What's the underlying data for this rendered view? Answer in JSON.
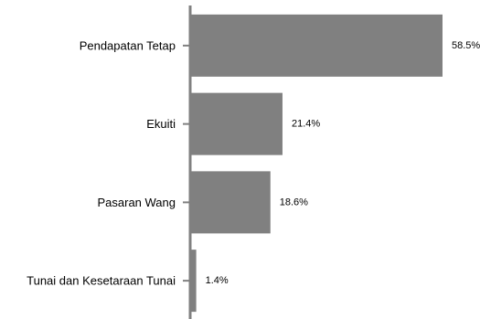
{
  "chart_data": {
    "type": "bar",
    "orientation": "horizontal",
    "title": "",
    "xlabel": "",
    "ylabel": "",
    "xlim": [
      0,
      58.5
    ],
    "grid": false,
    "legend": "none",
    "categories": [
      "Pendapatan Tetap",
      "Ekuiti",
      "Pasaran Wang",
      "Tunai dan Kesetaraan Tunai"
    ],
    "values": [
      58.5,
      21.4,
      18.6,
      1.4
    ],
    "value_labels": [
      "58.5%",
      "21.4%",
      "18.6%",
      "1.4%"
    ],
    "colors": {
      "bar": "#808080",
      "axis": "#808080",
      "text": "#000000"
    }
  }
}
